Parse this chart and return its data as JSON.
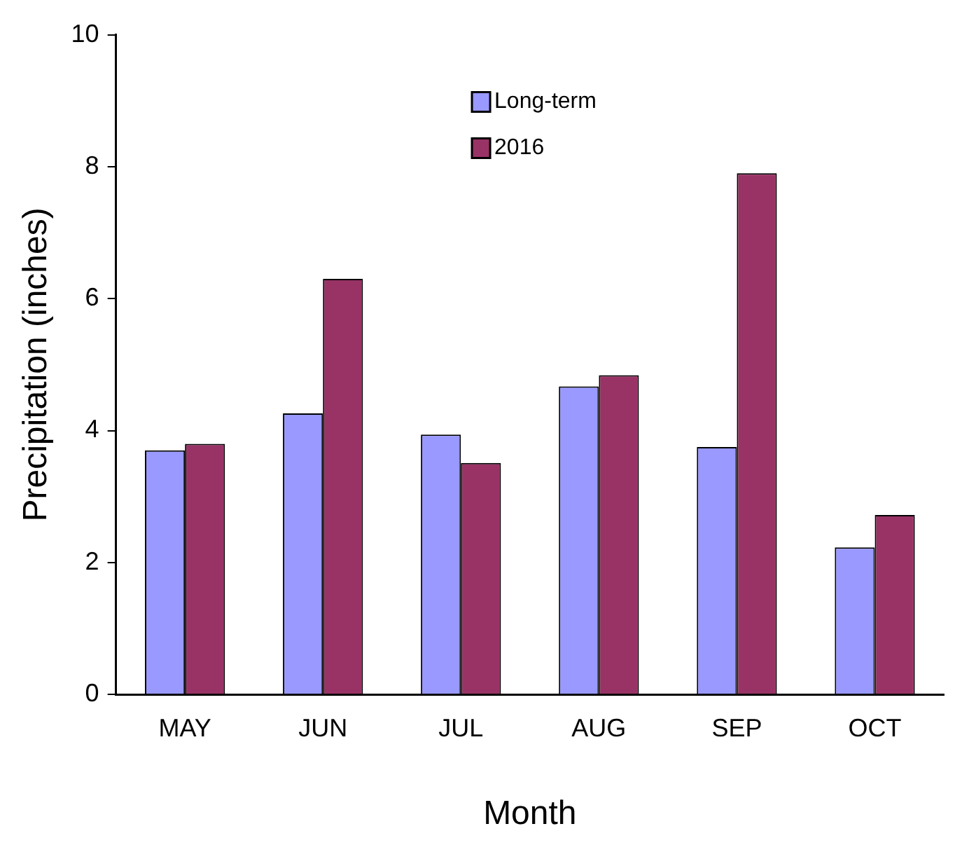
{
  "chart_data": {
    "type": "bar",
    "xlabel": "Month",
    "ylabel": "Precipitation (inches)",
    "categories": [
      "MAY",
      "JUN",
      "JUL",
      "AUG",
      "SEP",
      "OCT"
    ],
    "series": [
      {
        "name": "Long-term",
        "color": "#9999ff",
        "values": [
          3.7,
          4.26,
          3.94,
          4.67,
          3.75,
          2.23
        ]
      },
      {
        "name": "2016",
        "color": "#993366",
        "values": [
          3.8,
          6.3,
          3.51,
          4.84,
          7.9,
          2.72
        ]
      }
    ],
    "ylim": [
      0,
      10
    ],
    "yticks": [
      0,
      2,
      4,
      6,
      8,
      10
    ],
    "grid": false,
    "legend": "top"
  }
}
